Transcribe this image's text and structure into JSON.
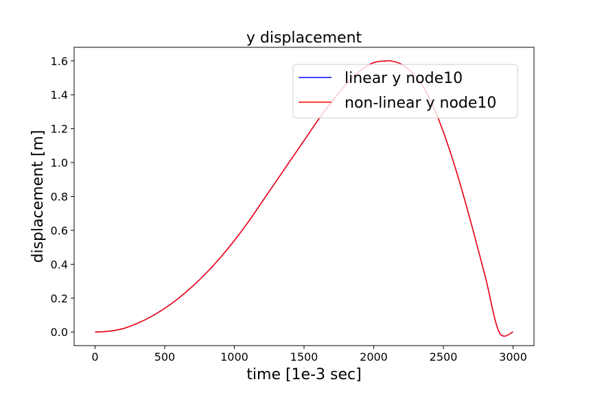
{
  "chart_data": {
    "type": "line",
    "title": "y displacement",
    "xlabel": "time [1e-3 sec]",
    "ylabel": "displacement [m]",
    "xlim": [
      -150,
      3150
    ],
    "ylim": [
      -0.08,
      1.68
    ],
    "xticks": [
      0,
      500,
      1000,
      1500,
      2000,
      2500,
      3000
    ],
    "xtick_labels": [
      "0",
      "500",
      "1000",
      "1500",
      "2000",
      "2500",
      "3000"
    ],
    "yticks": [
      0.0,
      0.2,
      0.4,
      0.6,
      0.8,
      1.0,
      1.2,
      1.4,
      1.6
    ],
    "ytick_labels": [
      "0.0",
      "0.2",
      "0.4",
      "0.6",
      "0.8",
      "1.0",
      "1.2",
      "1.4",
      "1.6"
    ],
    "grid": false,
    "legend_position": "top-right",
    "series": [
      {
        "name": "linear y node10",
        "color": "#0000ff",
        "x": [
          0,
          100,
          200,
          300,
          400,
          500,
          600,
          700,
          800,
          900,
          1000,
          1100,
          1200,
          1300,
          1400,
          1500,
          1600,
          1700,
          1800,
          1900,
          2000,
          2100,
          2120,
          2200,
          2300,
          2400,
          2500,
          2600,
          2700,
          2800,
          2900,
          3000
        ],
        "values": [
          0.0,
          0.005,
          0.02,
          0.05,
          0.09,
          0.14,
          0.2,
          0.27,
          0.35,
          0.44,
          0.54,
          0.65,
          0.77,
          0.89,
          1.01,
          1.13,
          1.25,
          1.36,
          1.46,
          1.54,
          1.59,
          1.6,
          1.6,
          1.58,
          1.51,
          1.38,
          1.18,
          0.93,
          0.64,
          0.33,
          0.0,
          0.0
        ]
      },
      {
        "name": "non-linear y node10",
        "color": "#ff0000",
        "x": [
          0,
          100,
          200,
          300,
          400,
          500,
          600,
          700,
          800,
          900,
          1000,
          1100,
          1200,
          1300,
          1400,
          1500,
          1600,
          1700,
          1800,
          1900,
          2000,
          2100,
          2120,
          2200,
          2300,
          2400,
          2500,
          2600,
          2700,
          2800,
          2900,
          3000
        ],
        "values": [
          0.0,
          0.005,
          0.02,
          0.05,
          0.09,
          0.14,
          0.2,
          0.27,
          0.35,
          0.44,
          0.54,
          0.65,
          0.77,
          0.89,
          1.01,
          1.13,
          1.25,
          1.36,
          1.46,
          1.54,
          1.59,
          1.6,
          1.6,
          1.58,
          1.51,
          1.38,
          1.18,
          0.93,
          0.64,
          0.33,
          0.0,
          0.0
        ]
      }
    ]
  }
}
